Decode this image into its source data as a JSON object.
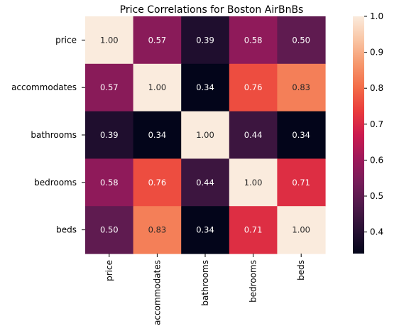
{
  "chart_data": {
    "type": "heatmap",
    "title": "Price Correlations for Boston AirBnBs",
    "row_labels": [
      "price",
      "accommodates",
      "bathrooms",
      "bedrooms",
      "beds"
    ],
    "col_labels": [
      "price",
      "accommodates",
      "bathrooms",
      "bedrooms",
      "beds"
    ],
    "values": [
      [
        1.0,
        0.57,
        0.39,
        0.58,
        0.5
      ],
      [
        0.57,
        1.0,
        0.34,
        0.76,
        0.83
      ],
      [
        0.39,
        0.34,
        1.0,
        0.44,
        0.34
      ],
      [
        0.58,
        0.76,
        0.44,
        1.0,
        0.71
      ],
      [
        0.5,
        0.83,
        0.34,
        0.71,
        1.0
      ]
    ],
    "cell_labels": [
      [
        "1.00",
        "0.57",
        "0.39",
        "0.58",
        "0.50"
      ],
      [
        "0.57",
        "1.00",
        "0.34",
        "0.76",
        "0.83"
      ],
      [
        "0.39",
        "0.34",
        "1.00",
        "0.44",
        "0.34"
      ],
      [
        "0.58",
        "0.76",
        "0.44",
        "1.00",
        "0.71"
      ],
      [
        "0.50",
        "0.83",
        "0.34",
        "0.71",
        "1.00"
      ]
    ],
    "colorbar": {
      "min": 0.34,
      "max": 1.0,
      "ticks": [
        1.0,
        0.9,
        0.8,
        0.7,
        0.6,
        0.5,
        0.4
      ],
      "tick_labels": [
        "1.0",
        "0.9",
        "0.8",
        "0.7",
        "0.6",
        "0.5",
        "0.4"
      ]
    },
    "colormap": "rocket",
    "grid": false
  }
}
